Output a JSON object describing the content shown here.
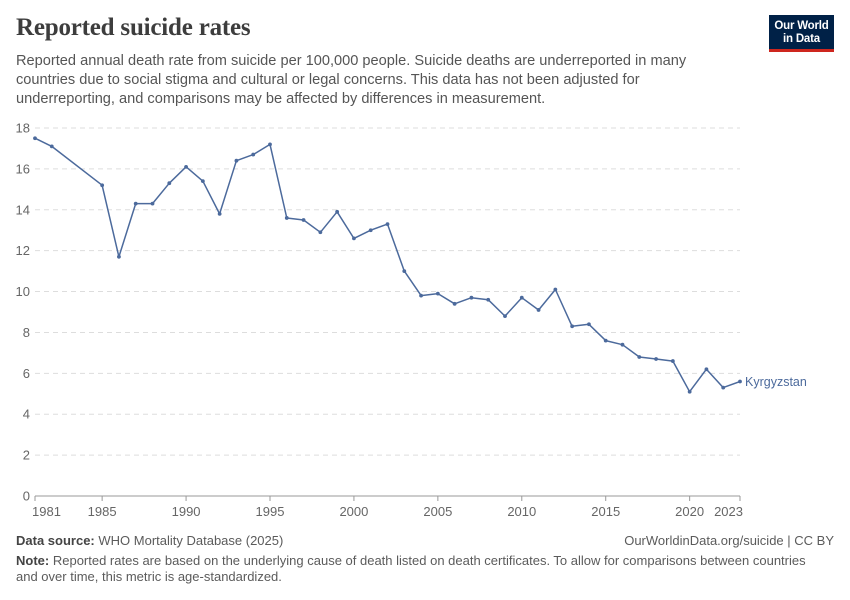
{
  "header": {
    "title": "Reported suicide rates",
    "subtitle": "Reported annual death rate from suicide per 100,000 people. Suicide deaths are underreported in many countries due to social stigma and cultural or legal concerns. This data has not been adjusted for underreporting, and comparisons may be affected by differences in measurement.",
    "logo_line1": "Our World",
    "logo_line2": "in Data"
  },
  "chart_data": {
    "type": "line",
    "title": "Reported suicide rates",
    "xlabel": "",
    "ylabel": "",
    "xlim": [
      1981,
      2023
    ],
    "ylim": [
      0,
      18
    ],
    "yticks": [
      0,
      2,
      4,
      6,
      8,
      10,
      12,
      14,
      16,
      18
    ],
    "xticks": [
      1981,
      1985,
      1990,
      1995,
      2000,
      2005,
      2010,
      2015,
      2020,
      2023
    ],
    "grid": true,
    "line_color": "#4c6a9c",
    "series": [
      {
        "name": "Kyrgyzstan",
        "x": [
          1981,
          1982,
          1985,
          1986,
          1987,
          1988,
          1989,
          1990,
          1991,
          1992,
          1993,
          1994,
          1995,
          1996,
          1997,
          1998,
          1999,
          2000,
          2001,
          2002,
          2003,
          2004,
          2005,
          2006,
          2007,
          2008,
          2009,
          2010,
          2011,
          2012,
          2013,
          2014,
          2015,
          2016,
          2017,
          2018,
          2019,
          2020,
          2021,
          2022,
          2023
        ],
        "values": [
          17.5,
          17.1,
          15.2,
          11.7,
          14.3,
          14.3,
          15.3,
          16.1,
          15.4,
          13.8,
          16.4,
          16.7,
          17.2,
          13.6,
          13.5,
          12.9,
          13.9,
          12.6,
          13.0,
          13.3,
          11.0,
          9.8,
          9.9,
          9.4,
          9.7,
          9.6,
          8.8,
          9.7,
          9.1,
          10.1,
          8.3,
          8.4,
          7.6,
          7.4,
          6.8,
          6.7,
          6.6,
          5.1,
          6.2,
          5.3,
          5.6
        ]
      }
    ]
  },
  "footer": {
    "source_label": "Data source:",
    "source_text": "WHO Mortality Database (2025)",
    "link": "OurWorldinData.org/suicide | CC BY",
    "note_label": "Note:",
    "note_text": "Reported rates are based on the underlying cause of death listed on death certificates. To allow for comparisons between countries and over time, this metric is age-standardized."
  }
}
